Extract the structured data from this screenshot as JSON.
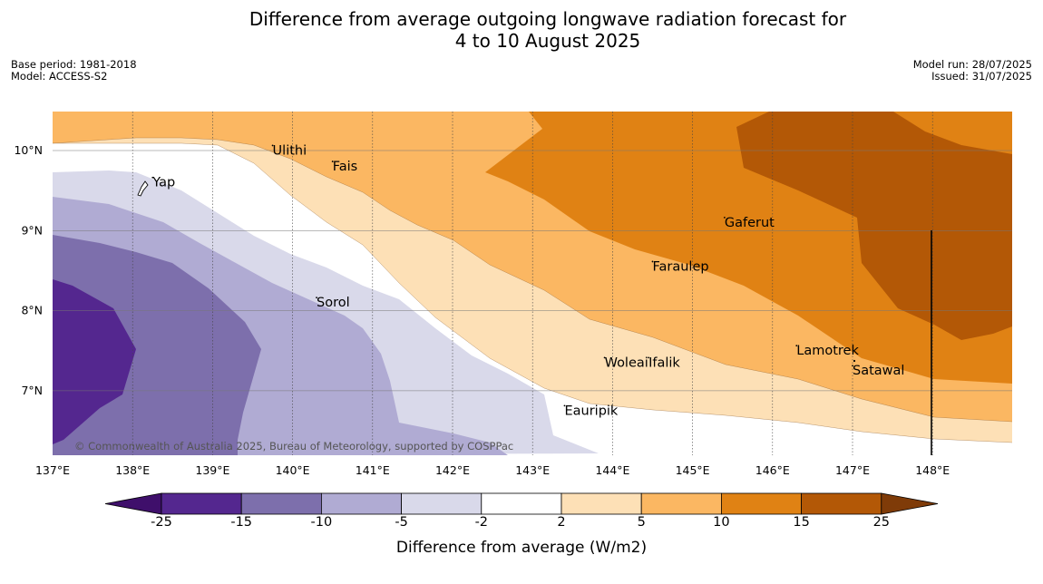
{
  "header": {
    "title_line1": "Difference from average outgoing longwave radiation forecast for",
    "title_line2": "4 to 10 August 2025",
    "base_period": "Base period: 1981-2018",
    "model": "Model: ACCESS-S2",
    "model_run": "Model run: 28/07/2025",
    "issued": "Issued: 31/07/2025"
  },
  "map": {
    "lon_range": [
      137,
      149
    ],
    "lat_range": [
      6.2,
      10.5
    ],
    "x_ticks": [
      "137°E",
      "138°E",
      "139°E",
      "140°E",
      "141°E",
      "142°E",
      "143°E",
      "144°E",
      "145°E",
      "146°E",
      "147°E",
      "148°E"
    ],
    "y_ticks": [
      "10°N",
      "9°N",
      "8°N",
      "7°N"
    ],
    "copyright": "© Commonwealth of Australia 2025, Bureau of Meteorology, supported by COSPPac",
    "places": [
      {
        "name": "Yap",
        "lon": 138.25,
        "lat": 9.55
      },
      {
        "name": "Ulithi",
        "lon": 139.75,
        "lat": 9.95
      },
      {
        "name": "Fais",
        "lon": 140.5,
        "lat": 9.75
      },
      {
        "name": "Gaferut",
        "lon": 145.4,
        "lat": 9.05
      },
      {
        "name": "Faraulep",
        "lon": 144.5,
        "lat": 8.5
      },
      {
        "name": "Sorol",
        "lon": 140.3,
        "lat": 8.05
      },
      {
        "name": "Woleai",
        "lon": 143.9,
        "lat": 7.3
      },
      {
        "name": "Ifalik",
        "lon": 144.45,
        "lat": 7.3
      },
      {
        "name": "Lamotrek",
        "lon": 146.3,
        "lat": 7.45
      },
      {
        "name": "Satawal",
        "lon": 147.0,
        "lat": 7.2
      },
      {
        "name": "Eauripik",
        "lon": 143.4,
        "lat": 6.7
      }
    ]
  },
  "colorbar": {
    "ticks": [
      "-25",
      "-15",
      "-10",
      "-5",
      "-2",
      "2",
      "5",
      "10",
      "15",
      "25"
    ],
    "colors": [
      "#3f0f6b",
      "#54278f",
      "#7d6fac",
      "#b0abd3",
      "#d9d9ea",
      "#ffffff",
      "#fde0b6",
      "#fbb762",
      "#e08214",
      "#b35806",
      "#7f3b08"
    ],
    "label": "Difference from average (W/m2)"
  }
}
